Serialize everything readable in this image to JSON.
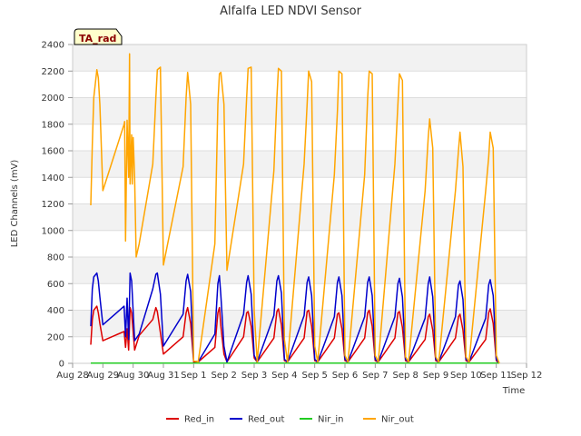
{
  "chart_data": {
    "type": "line",
    "title": "Alfalfa LED NDVI Sensor",
    "xlabel": "Time",
    "ylabel": "LED Channels (mV)",
    "badge": "TA_rad",
    "ylim": [
      0,
      2400
    ],
    "yticks": [
      0,
      200,
      400,
      600,
      800,
      1000,
      1200,
      1400,
      1600,
      1800,
      2000,
      2200,
      2400
    ],
    "xlim": [
      0,
      15
    ],
    "xtick_labels": [
      "Aug 28",
      "Aug 29",
      "Aug 30",
      "Aug 31",
      "Sep 1",
      "Sep 2",
      "Sep 3",
      "Sep 4",
      "Sep 5",
      "Sep 6",
      "Sep 7",
      "Sep 8",
      "Sep 9",
      "Sep 10",
      "Sep 11",
      "Sep 12"
    ],
    "grid": true,
    "legend_position": "bottom",
    "series": [
      {
        "name": "Red_in",
        "color": "#dd0000",
        "x": [
          0.6,
          0.65,
          0.7,
          0.8,
          0.85,
          0.9,
          1.0,
          1.7,
          1.75,
          1.8,
          1.85,
          1.9,
          1.95,
          2.05,
          2.2,
          2.65,
          2.75,
          2.8,
          2.9,
          3.0,
          3.65,
          3.75,
          3.8,
          3.9,
          4.0,
          4.15,
          4.7,
          4.8,
          4.85,
          4.9,
          5.0,
          5.1,
          5.65,
          5.75,
          5.8,
          5.9,
          6.0,
          6.1,
          6.65,
          6.75,
          6.8,
          6.9,
          7.0,
          7.1,
          7.65,
          7.75,
          7.8,
          7.9,
          8.0,
          8.1,
          8.65,
          8.75,
          8.8,
          8.9,
          9.0,
          9.1,
          9.65,
          9.75,
          9.8,
          9.9,
          10.0,
          10.1,
          10.65,
          10.75,
          10.8,
          10.9,
          11.0,
          11.1,
          11.65,
          11.75,
          11.8,
          11.9,
          12.0,
          12.1,
          12.65,
          12.75,
          12.8,
          12.9,
          13.0,
          13.1,
          13.65,
          13.75,
          13.8,
          13.9,
          14.0,
          14.1
        ],
        "values": [
          140,
          330,
          400,
          430,
          380,
          300,
          170,
          240,
          120,
          260,
          100,
          420,
          380,
          100,
          210,
          330,
          420,
          390,
          230,
          70,
          200,
          380,
          420,
          300,
          10,
          10,
          120,
          380,
          420,
          280,
          70,
          10,
          200,
          380,
          390,
          280,
          40,
          10,
          190,
          390,
          410,
          290,
          20,
          10,
          190,
          390,
          400,
          280,
          20,
          10,
          190,
          370,
          380,
          260,
          20,
          10,
          190,
          380,
          400,
          280,
          20,
          10,
          190,
          380,
          390,
          270,
          20,
          10,
          180,
          350,
          370,
          250,
          20,
          10,
          190,
          350,
          370,
          250,
          20,
          10,
          180,
          380,
          410,
          300,
          20,
          0
        ]
      },
      {
        "name": "Red_out",
        "color": "#0000cc",
        "x": [
          0.6,
          0.65,
          0.7,
          0.8,
          0.85,
          0.9,
          1.0,
          1.7,
          1.75,
          1.8,
          1.85,
          1.9,
          1.95,
          2.05,
          2.2,
          2.65,
          2.75,
          2.8,
          2.9,
          3.0,
          3.65,
          3.75,
          3.8,
          3.9,
          4.0,
          4.15,
          4.7,
          4.8,
          4.85,
          4.9,
          5.0,
          5.1,
          5.65,
          5.75,
          5.8,
          5.9,
          6.0,
          6.1,
          6.65,
          6.75,
          6.8,
          6.9,
          7.0,
          7.1,
          7.65,
          7.75,
          7.8,
          7.9,
          8.0,
          8.1,
          8.65,
          8.75,
          8.8,
          8.9,
          9.0,
          9.1,
          9.65,
          9.75,
          9.8,
          9.9,
          10.0,
          10.1,
          10.65,
          10.75,
          10.8,
          10.9,
          11.0,
          11.1,
          11.65,
          11.75,
          11.8,
          11.9,
          12.0,
          12.1,
          12.65,
          12.75,
          12.8,
          12.9,
          13.0,
          13.1,
          13.65,
          13.75,
          13.8,
          13.9,
          14.0,
          14.1
        ],
        "values": [
          280,
          560,
          650,
          680,
          620,
          500,
          290,
          430,
          200,
          490,
          180,
          680,
          620,
          170,
          220,
          560,
          670,
          680,
          520,
          130,
          370,
          620,
          670,
          540,
          20,
          10,
          220,
          600,
          660,
          510,
          130,
          10,
          370,
          610,
          660,
          520,
          60,
          10,
          360,
          620,
          660,
          530,
          30,
          10,
          360,
          610,
          650,
          510,
          30,
          10,
          350,
          610,
          650,
          510,
          30,
          10,
          350,
          610,
          650,
          510,
          30,
          10,
          350,
          600,
          640,
          500,
          30,
          10,
          340,
          600,
          650,
          500,
          30,
          10,
          350,
          590,
          620,
          480,
          30,
          10,
          340,
          590,
          630,
          510,
          30,
          0
        ]
      },
      {
        "name": "Nir_in",
        "color": "#22cc22",
        "x": [
          0.6,
          14.1
        ],
        "values": [
          2,
          2
        ]
      },
      {
        "name": "Nir_out",
        "color": "#ffa500",
        "x": [
          0.6,
          0.65,
          0.7,
          0.8,
          0.85,
          0.9,
          1.0,
          1.7,
          1.72,
          1.75,
          1.8,
          1.85,
          1.88,
          1.9,
          1.95,
          1.97,
          2.0,
          2.05,
          2.1,
          2.2,
          2.65,
          2.75,
          2.8,
          2.9,
          3.0,
          3.65,
          3.75,
          3.8,
          3.9,
          4.0,
          4.15,
          4.7,
          4.8,
          4.85,
          4.9,
          5.0,
          5.1,
          5.65,
          5.75,
          5.8,
          5.9,
          6.0,
          6.1,
          6.65,
          6.75,
          6.8,
          6.9,
          7.0,
          7.1,
          7.65,
          7.75,
          7.8,
          7.9,
          8.0,
          8.1,
          8.65,
          8.75,
          8.8,
          8.9,
          9.0,
          9.1,
          9.65,
          9.75,
          9.8,
          9.9,
          10.0,
          10.1,
          10.65,
          10.75,
          10.8,
          10.9,
          11.0,
          11.1,
          11.65,
          11.75,
          11.8,
          11.9,
          12.0,
          12.1,
          12.65,
          12.75,
          12.8,
          12.9,
          13.0,
          13.1,
          13.65,
          13.75,
          13.8,
          13.9,
          14.0,
          14.1
        ],
        "values": [
          1190,
          1650,
          2000,
          2210,
          2150,
          1950,
          1300,
          1800,
          1820,
          920,
          1830,
          1400,
          2330,
          1350,
          1720,
          1350,
          1700,
          1400,
          800,
          900,
          1500,
          2000,
          2210,
          2230,
          740,
          1480,
          2000,
          2190,
          1950,
          20,
          10,
          900,
          1950,
          2180,
          2190,
          1950,
          700,
          1500,
          2000,
          2220,
          2230,
          400,
          10,
          1450,
          2000,
          2220,
          2200,
          180,
          10,
          1500,
          1950,
          2200,
          2120,
          130,
          10,
          1420,
          1900,
          2200,
          2180,
          60,
          10,
          1420,
          2000,
          2200,
          2180,
          60,
          10,
          1500,
          1950,
          2180,
          2130,
          50,
          10,
          1300,
          1700,
          1840,
          1620,
          50,
          10,
          1300,
          1600,
          1740,
          1480,
          50,
          10,
          1300,
          1550,
          1740,
          1620,
          60,
          0
        ]
      }
    ]
  }
}
